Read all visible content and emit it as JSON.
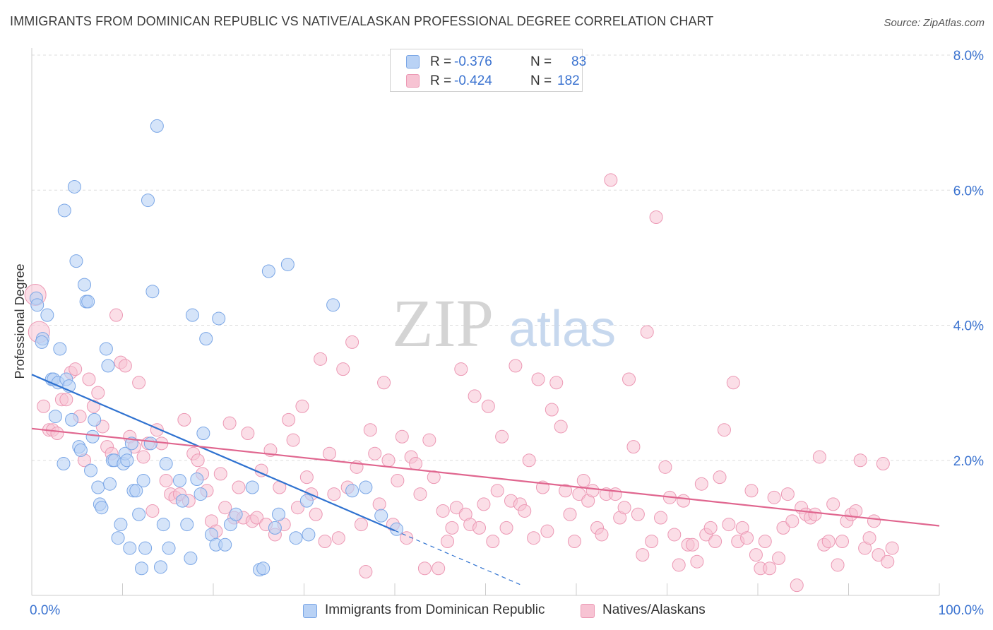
{
  "title": "IMMIGRANTS FROM DOMINICAN REPUBLIC VS NATIVE/ALASKAN PROFESSIONAL DEGREE CORRELATION CHART",
  "source": "Source: ZipAtlas.com",
  "watermark": {
    "zip": "ZIP",
    "atlas": "atlas"
  },
  "colors": {
    "blue_fill": "#b9d2f5",
    "blue_stroke": "#7aa6e6",
    "blue_line": "#2f72d0",
    "pink_fill": "#f7c3d3",
    "pink_stroke": "#ec98b4",
    "pink_line": "#e0668f",
    "axis_value": "#3b73d0",
    "grid": "#dddddd"
  },
  "legend": {
    "rows": [
      {
        "r_label": "R =",
        "r_value": "-0.376",
        "n_label": "N =",
        "n_value": "83"
      },
      {
        "r_label": "R =",
        "r_value": "-0.424",
        "n_label": "N =",
        "n_value": "182"
      }
    ]
  },
  "bottom_legend": {
    "series1": "Immigrants from Dominican Republic",
    "series2": "Natives/Alaskans"
  },
  "chart_data": {
    "type": "scatter",
    "title": "IMMIGRANTS FROM DOMINICAN REPUBLIC VS NATIVE/ALASKAN PROFESSIONAL DEGREE CORRELATION CHART",
    "xlabel": "",
    "ylabel": "Professional Degree",
    "xlim": [
      0,
      100
    ],
    "ylim": [
      0,
      8.0
    ],
    "x_tick_labels": [
      "0.0%",
      "100.0%"
    ],
    "y_ticks": [
      2.0,
      4.0,
      6.0,
      8.0
    ],
    "y_tick_labels": [
      "2.0%",
      "4.0%",
      "6.0%",
      "8.0%"
    ],
    "grid": "horizontal dashed",
    "legend_position": "top-center",
    "series": [
      {
        "name": "Immigrants from Dominican Republic",
        "r": -0.376,
        "n": 83,
        "trend": {
          "x": [
            0,
            40
          ],
          "y": [
            3.27,
            0.96
          ],
          "extended_to": [
            54,
            0.15
          ]
        },
        "points": [
          [
            0.5,
            4.4
          ],
          [
            0.6,
            4.3
          ],
          [
            1.2,
            3.8
          ],
          [
            1.1,
            3.75
          ],
          [
            1.7,
            4.15
          ],
          [
            2.2,
            3.2
          ],
          [
            2.4,
            3.2
          ],
          [
            2.6,
            2.65
          ],
          [
            2.9,
            3.15
          ],
          [
            3.1,
            3.65
          ],
          [
            3.5,
            1.95
          ],
          [
            3.6,
            5.7
          ],
          [
            3.8,
            3.2
          ],
          [
            4.1,
            3.1
          ],
          [
            4.4,
            2.6
          ],
          [
            4.7,
            6.05
          ],
          [
            4.9,
            4.95
          ],
          [
            5.2,
            2.2
          ],
          [
            5.4,
            2.15
          ],
          [
            5.8,
            4.6
          ],
          [
            6.0,
            4.35
          ],
          [
            6.2,
            4.35
          ],
          [
            6.5,
            1.85
          ],
          [
            6.7,
            2.35
          ],
          [
            6.9,
            2.6
          ],
          [
            7.3,
            1.6
          ],
          [
            7.5,
            1.35
          ],
          [
            7.7,
            1.3
          ],
          [
            8.2,
            3.65
          ],
          [
            8.4,
            3.4
          ],
          [
            8.6,
            1.65
          ],
          [
            8.9,
            2.0
          ],
          [
            9.1,
            2.0
          ],
          [
            9.5,
            0.85
          ],
          [
            9.8,
            1.05
          ],
          [
            10.1,
            1.95
          ],
          [
            10.3,
            2.1
          ],
          [
            10.5,
            2.0
          ],
          [
            10.8,
            0.7
          ],
          [
            11.0,
            2.25
          ],
          [
            11.2,
            1.55
          ],
          [
            11.5,
            1.55
          ],
          [
            11.8,
            1.2
          ],
          [
            12.1,
            0.4
          ],
          [
            12.3,
            1.7
          ],
          [
            12.5,
            0.7
          ],
          [
            12.8,
            5.85
          ],
          [
            13.1,
            2.25
          ],
          [
            13.3,
            4.5
          ],
          [
            13.8,
            6.95
          ],
          [
            14.2,
            0.42
          ],
          [
            14.5,
            1.05
          ],
          [
            14.8,
            1.95
          ],
          [
            15.1,
            0.7
          ],
          [
            16.3,
            1.7
          ],
          [
            16.6,
            1.4
          ],
          [
            17.1,
            1.05
          ],
          [
            17.5,
            0.55
          ],
          [
            17.7,
            4.15
          ],
          [
            18.2,
            1.72
          ],
          [
            18.6,
            1.5
          ],
          [
            18.9,
            2.4
          ],
          [
            19.2,
            3.8
          ],
          [
            19.8,
            0.9
          ],
          [
            20.3,
            0.75
          ],
          [
            20.6,
            4.1
          ],
          [
            21.3,
            0.75
          ],
          [
            21.9,
            1.05
          ],
          [
            22.5,
            1.2
          ],
          [
            24.3,
            1.6
          ],
          [
            25.1,
            0.38
          ],
          [
            25.5,
            0.4
          ],
          [
            26.1,
            4.8
          ],
          [
            26.8,
            1.0
          ],
          [
            27.2,
            1.2
          ],
          [
            28.2,
            4.9
          ],
          [
            29.1,
            0.85
          ],
          [
            30.3,
            1.4
          ],
          [
            30.5,
            0.9
          ],
          [
            33.2,
            4.3
          ],
          [
            35.3,
            1.55
          ],
          [
            36.8,
            1.6
          ],
          [
            38.5,
            1.18
          ],
          [
            40.2,
            0.98
          ]
        ]
      },
      {
        "name": "Natives/Alaskans",
        "r": -0.424,
        "n": 182,
        "trend": {
          "x": [
            0,
            100
          ],
          "y": [
            2.47,
            1.03
          ]
        },
        "points": [
          [
            0.4,
            4.45
          ],
          [
            0.8,
            3.9
          ],
          [
            1.3,
            2.8
          ],
          [
            1.9,
            2.45
          ],
          [
            2.3,
            2.45
          ],
          [
            2.8,
            2.4
          ],
          [
            3.3,
            2.9
          ],
          [
            3.8,
            2.9
          ],
          [
            4.3,
            3.3
          ],
          [
            4.8,
            3.35
          ],
          [
            5.3,
            2.65
          ],
          [
            5.8,
            2.0
          ],
          [
            6.3,
            3.2
          ],
          [
            6.8,
            2.8
          ],
          [
            7.3,
            3.0
          ],
          [
            7.8,
            2.5
          ],
          [
            8.3,
            2.2
          ],
          [
            8.8,
            2.1
          ],
          [
            9.3,
            4.15
          ],
          [
            9.8,
            3.45
          ],
          [
            10.3,
            3.4
          ],
          [
            10.8,
            2.35
          ],
          [
            11.3,
            2.2
          ],
          [
            11.8,
            3.15
          ],
          [
            12.3,
            2.05
          ],
          [
            12.8,
            2.25
          ],
          [
            13.3,
            1.25
          ],
          [
            13.8,
            2.45
          ],
          [
            14.3,
            2.25
          ],
          [
            14.8,
            1.7
          ],
          [
            15.3,
            1.5
          ],
          [
            15.8,
            1.45
          ],
          [
            16.3,
            1.5
          ],
          [
            16.8,
            2.6
          ],
          [
            17.3,
            1.4
          ],
          [
            17.8,
            2.1
          ],
          [
            18.3,
            2.0
          ],
          [
            18.8,
            1.8
          ],
          [
            19.3,
            1.55
          ],
          [
            19.8,
            1.1
          ],
          [
            20.3,
            0.95
          ],
          [
            20.8,
            1.8
          ],
          [
            21.3,
            1.3
          ],
          [
            21.8,
            2.55
          ],
          [
            22.3,
            1.15
          ],
          [
            22.8,
            1.6
          ],
          [
            23.3,
            1.15
          ],
          [
            23.8,
            2.4
          ],
          [
            24.3,
            1.1
          ],
          [
            24.8,
            1.15
          ],
          [
            25.3,
            1.85
          ],
          [
            25.8,
            1.05
          ],
          [
            26.3,
            2.15
          ],
          [
            26.8,
            0.9
          ],
          [
            27.3,
            1.6
          ],
          [
            27.8,
            1.05
          ],
          [
            28.3,
            2.6
          ],
          [
            28.8,
            2.3
          ],
          [
            29.3,
            1.3
          ],
          [
            29.8,
            2.8
          ],
          [
            30.3,
            1.75
          ],
          [
            30.8,
            1.5
          ],
          [
            31.3,
            1.2
          ],
          [
            31.8,
            3.5
          ],
          [
            32.3,
            0.8
          ],
          [
            32.8,
            2.1
          ],
          [
            33.3,
            1.5
          ],
          [
            33.8,
            0.85
          ],
          [
            34.3,
            3.35
          ],
          [
            34.8,
            1.6
          ],
          [
            35.3,
            3.75
          ],
          [
            35.8,
            1.9
          ],
          [
            36.3,
            1.05
          ],
          [
            36.8,
            0.35
          ],
          [
            37.3,
            2.45
          ],
          [
            37.8,
            2.1
          ],
          [
            38.3,
            1.35
          ],
          [
            38.8,
            3.15
          ],
          [
            39.3,
            2.0
          ],
          [
            39.8,
            1.05
          ],
          [
            40.3,
            1.7
          ],
          [
            40.8,
            2.35
          ],
          [
            41.3,
            0.85
          ],
          [
            41.8,
            2.05
          ],
          [
            42.3,
            1.95
          ],
          [
            42.8,
            1.5
          ],
          [
            43.3,
            0.4
          ],
          [
            43.8,
            2.3
          ],
          [
            44.3,
            1.75
          ],
          [
            44.8,
            0.4
          ],
          [
            45.3,
            1.25
          ],
          [
            45.8,
            0.8
          ],
          [
            46.3,
            1.0
          ],
          [
            46.8,
            1.3
          ],
          [
            47.3,
            3.35
          ],
          [
            47.8,
            1.2
          ],
          [
            48.3,
            1.05
          ],
          [
            48.8,
            2.95
          ],
          [
            49.3,
            1.0
          ],
          [
            49.8,
            1.35
          ],
          [
            50.3,
            2.8
          ],
          [
            50.8,
            0.8
          ],
          [
            51.3,
            1.55
          ],
          [
            51.8,
            2.35
          ],
          [
            52.3,
            1.0
          ],
          [
            52.8,
            1.4
          ],
          [
            53.3,
            3.4
          ],
          [
            53.8,
            1.35
          ],
          [
            54.3,
            1.25
          ],
          [
            54.8,
            2.0
          ],
          [
            55.3,
            0.85
          ],
          [
            55.8,
            3.2
          ],
          [
            56.3,
            1.6
          ],
          [
            56.8,
            0.95
          ],
          [
            57.3,
            2.75
          ],
          [
            57.8,
            3.15
          ],
          [
            58.3,
            2.5
          ],
          [
            58.8,
            1.55
          ],
          [
            59.3,
            1.2
          ],
          [
            59.8,
            0.8
          ],
          [
            60.3,
            1.5
          ],
          [
            60.8,
            1.7
          ],
          [
            61.3,
            1.4
          ],
          [
            61.8,
            1.55
          ],
          [
            62.3,
            1.0
          ],
          [
            62.8,
            0.9
          ],
          [
            63.3,
            1.5
          ],
          [
            63.8,
            6.15
          ],
          [
            64.3,
            1.5
          ],
          [
            64.8,
            1.15
          ],
          [
            65.3,
            1.3
          ],
          [
            65.8,
            3.2
          ],
          [
            66.3,
            2.2
          ],
          [
            66.8,
            1.2
          ],
          [
            67.3,
            0.6
          ],
          [
            67.8,
            3.9
          ],
          [
            68.3,
            0.8
          ],
          [
            68.8,
            5.6
          ],
          [
            69.3,
            1.15
          ],
          [
            69.8,
            1.9
          ],
          [
            70.3,
            1.45
          ],
          [
            70.8,
            0.9
          ],
          [
            71.3,
            0.45
          ],
          [
            71.8,
            1.4
          ],
          [
            72.3,
            0.75
          ],
          [
            72.8,
            0.75
          ],
          [
            73.3,
            0.5
          ],
          [
            73.8,
            1.65
          ],
          [
            74.3,
            0.9
          ],
          [
            74.8,
            1.0
          ],
          [
            75.3,
            0.8
          ],
          [
            75.8,
            1.75
          ],
          [
            76.3,
            2.45
          ],
          [
            76.8,
            1.05
          ],
          [
            77.3,
            3.15
          ],
          [
            77.8,
            0.8
          ],
          [
            78.3,
            1.0
          ],
          [
            78.8,
            0.85
          ],
          [
            79.3,
            1.55
          ],
          [
            79.8,
            0.6
          ],
          [
            80.3,
            0.4
          ],
          [
            80.8,
            0.8
          ],
          [
            81.3,
            0.4
          ],
          [
            81.8,
            1.45
          ],
          [
            82.3,
            0.55
          ],
          [
            82.8,
            1.0
          ],
          [
            83.3,
            1.5
          ],
          [
            83.8,
            1.1
          ],
          [
            84.3,
            0.15
          ],
          [
            84.8,
            1.3
          ],
          [
            85.3,
            1.2
          ],
          [
            85.8,
            1.15
          ],
          [
            86.3,
            1.2
          ],
          [
            86.8,
            2.05
          ],
          [
            87.3,
            0.75
          ],
          [
            87.8,
            0.8
          ],
          [
            88.3,
            1.35
          ],
          [
            88.8,
            0.45
          ],
          [
            89.3,
            0.8
          ],
          [
            89.8,
            1.1
          ],
          [
            90.3,
            1.2
          ],
          [
            90.8,
            1.25
          ],
          [
            91.3,
            2.0
          ],
          [
            91.8,
            0.7
          ],
          [
            92.3,
            0.85
          ],
          [
            92.8,
            1.1
          ],
          [
            93.3,
            0.6
          ],
          [
            93.8,
            1.95
          ],
          [
            94.3,
            0.5
          ],
          [
            94.8,
            0.7
          ]
        ]
      }
    ]
  }
}
